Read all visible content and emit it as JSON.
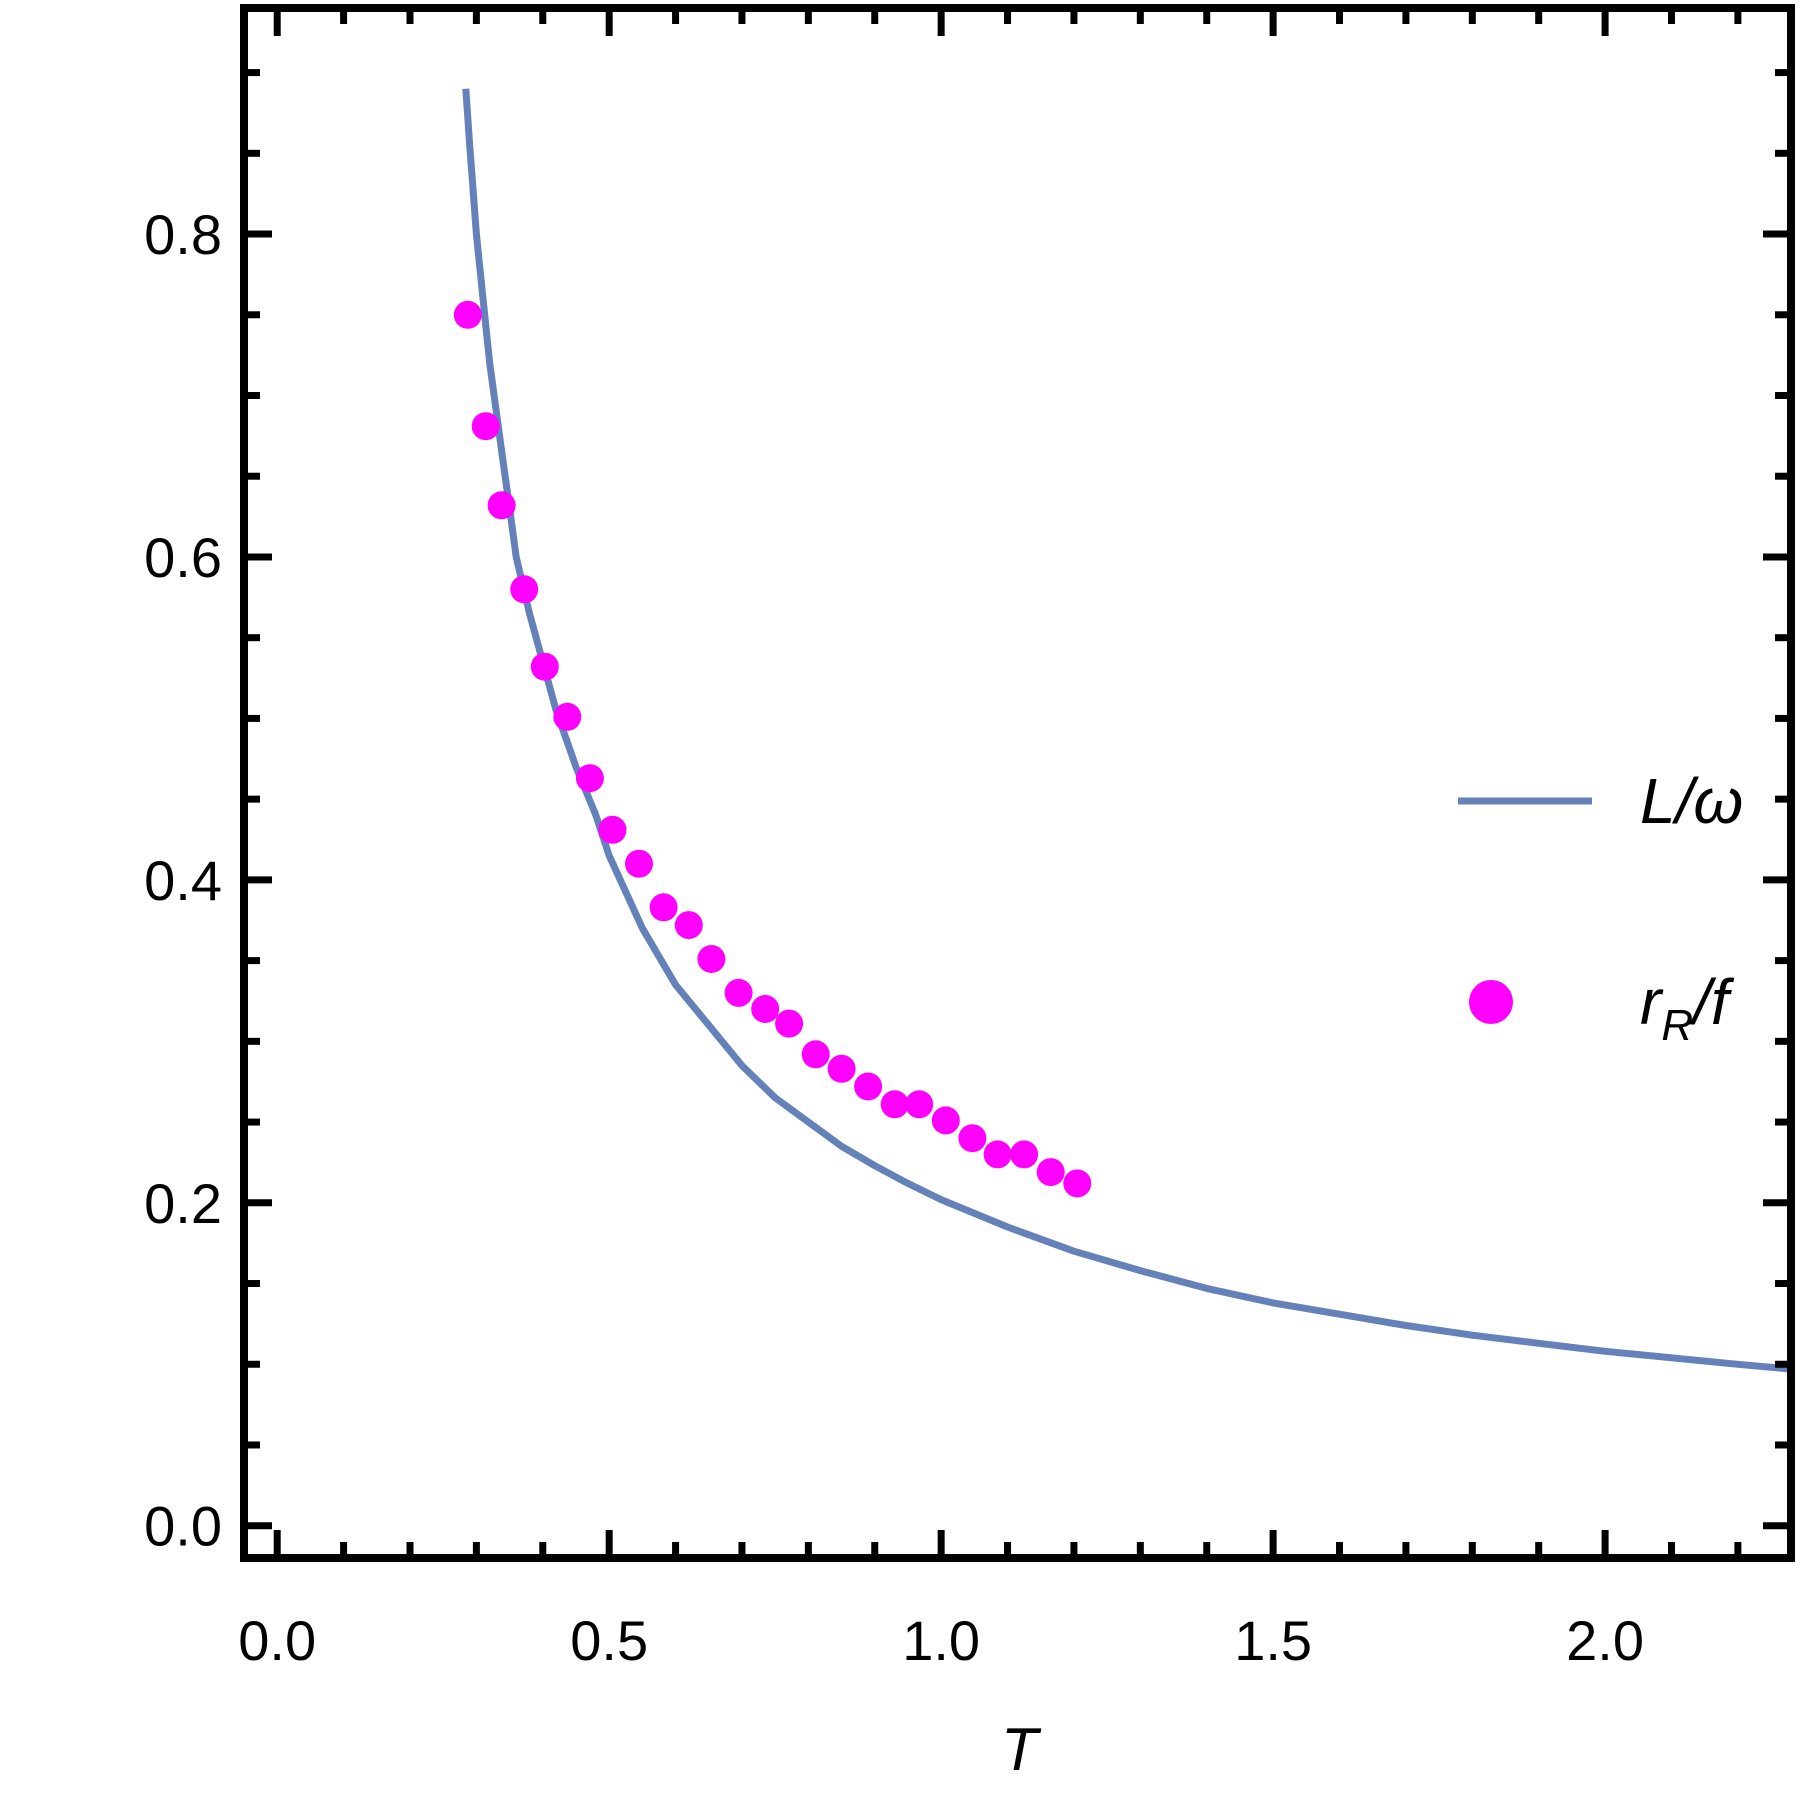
{
  "chart_data": {
    "type": "scatter",
    "title": "",
    "xlabel": "T",
    "ylabel": "",
    "xlim": [
      -0.05,
      2.28
    ],
    "ylim": [
      -0.02,
      0.94
    ],
    "x_ticks": [
      0.0,
      0.5,
      1.0,
      1.5,
      2.0
    ],
    "x_tick_labels": [
      "0.0",
      "0.5",
      "1.0",
      "1.5",
      "2.0"
    ],
    "y_ticks": [
      0.0,
      0.2,
      0.4,
      0.6,
      0.8
    ],
    "y_tick_labels": [
      "0.0",
      "0.2",
      "0.4",
      "0.6",
      "0.8"
    ],
    "grid": false,
    "legend_position": "right",
    "colors": {
      "line": "#6482b9",
      "points": "#ff00ff",
      "frame": "#000000"
    },
    "series": [
      {
        "kind": "line",
        "legend": {
          "main": "L/ω",
          "sub": "",
          "tail": ""
        },
        "x": [
          0.284,
          0.29,
          0.3,
          0.31,
          0.32,
          0.33,
          0.34,
          0.35,
          0.36,
          0.38,
          0.4,
          0.42,
          0.45,
          0.48,
          0.5,
          0.55,
          0.6,
          0.65,
          0.7,
          0.75,
          0.8,
          0.85,
          0.9,
          0.95,
          1.0,
          1.1,
          1.2,
          1.3,
          1.4,
          1.5,
          1.6,
          1.7,
          1.8,
          1.9,
          2.0,
          2.1,
          2.2,
          2.28
        ],
        "y": [
          0.89,
          0.855,
          0.8,
          0.76,
          0.72,
          0.69,
          0.66,
          0.63,
          0.6,
          0.565,
          0.535,
          0.505,
          0.47,
          0.44,
          0.415,
          0.37,
          0.335,
          0.31,
          0.285,
          0.265,
          0.25,
          0.235,
          0.223,
          0.212,
          0.202,
          0.185,
          0.17,
          0.158,
          0.147,
          0.138,
          0.131,
          0.124,
          0.118,
          0.113,
          0.108,
          0.104,
          0.1,
          0.097
        ]
      },
      {
        "kind": "scatter",
        "legend": {
          "main": "r",
          "sub": "R",
          "tail": "/f"
        },
        "x": [
          0.287,
          0.314,
          0.338,
          0.372,
          0.403,
          0.437,
          0.471,
          0.505,
          0.545,
          0.582,
          0.62,
          0.654,
          0.695,
          0.735,
          0.771,
          0.811,
          0.85,
          0.89,
          0.93,
          0.967,
          1.007,
          1.047,
          1.085,
          1.125,
          1.165,
          1.205
        ],
        "y": [
          0.75,
          0.681,
          0.632,
          0.58,
          0.532,
          0.501,
          0.463,
          0.431,
          0.41,
          0.383,
          0.372,
          0.351,
          0.33,
          0.32,
          0.311,
          0.292,
          0.283,
          0.272,
          0.261,
          0.261,
          0.251,
          0.24,
          0.23,
          0.23,
          0.219,
          0.212
        ]
      }
    ]
  }
}
